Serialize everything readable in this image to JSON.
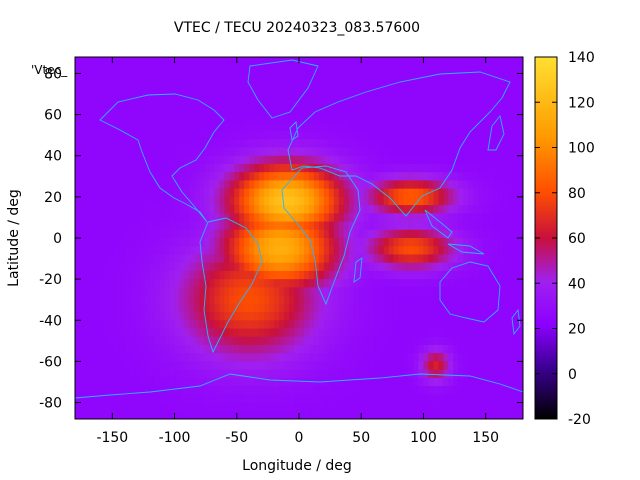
{
  "chart_data": {
    "type": "heatmap",
    "title": "VTEC / TECU 20240323_083.57600",
    "xlabel": "Longitude / deg",
    "ylabel": "Latitude / deg",
    "xlim": [
      -180,
      180
    ],
    "ylim": [
      -88,
      88
    ],
    "xticks": [
      -150,
      -100,
      -50,
      0,
      50,
      100,
      150
    ],
    "yticks": [
      -80,
      -60,
      -40,
      -20,
      0,
      20,
      40,
      60,
      80
    ],
    "colorbar": {
      "range": [
        -20,
        140
      ],
      "ticks": [
        -20,
        0,
        20,
        40,
        60,
        80,
        100,
        120,
        140
      ],
      "colormap": [
        "#000000",
        "#3a0090",
        "#8c00ff",
        "#a020f0",
        "#c8103c",
        "#ff5000",
        "#ff9a00",
        "#ffe030"
      ]
    },
    "legend_label": "'Vtec_",
    "grid": false,
    "overlay": "coastlines",
    "field_features": [
      {
        "description": "equatorial ionization anomaly maximum",
        "lon": -10,
        "lat": 18,
        "value": 125
      },
      {
        "description": "southern anomaly crest",
        "lon": -15,
        "lat": -5,
        "value": 115
      },
      {
        "description": "Atlantic / Africa enhancement",
        "lon": -40,
        "lat": -30,
        "value": 80
      },
      {
        "description": "Asian tongue",
        "lon": 90,
        "lat": 20,
        "value": 85
      },
      {
        "description": "Indian Ocean tongue",
        "lon": 90,
        "lat": -5,
        "value": 80
      },
      {
        "description": "southern Indian Ocean patch",
        "lon": 110,
        "lat": -62,
        "value": 65
      },
      {
        "description": "background",
        "lon": 160,
        "lat": 0,
        "value": 25
      }
    ]
  }
}
